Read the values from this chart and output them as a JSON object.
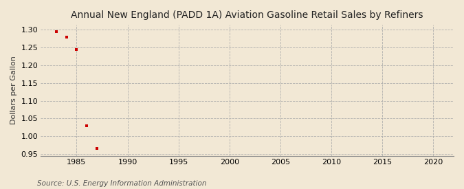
{
  "title": "Annual New England (PADD 1A) Aviation Gasoline Retail Sales by Refiners",
  "ylabel": "Dollars per Gallon",
  "source": "Source: U.S. Energy Information Administration",
  "x_data": [
    1983,
    1984,
    1985,
    1986,
    1987
  ],
  "y_data": [
    1.295,
    1.28,
    1.245,
    1.03,
    0.965
  ],
  "marker_color": "#cc0000",
  "marker_size": 3.5,
  "xlim": [
    1981.5,
    2022
  ],
  "ylim": [
    0.945,
    1.315
  ],
  "xticks": [
    1985,
    1990,
    1995,
    2000,
    2005,
    2010,
    2015,
    2020
  ],
  "yticks": [
    0.95,
    1.0,
    1.05,
    1.1,
    1.15,
    1.2,
    1.25,
    1.3
  ],
  "background_color": "#f2e8d5",
  "plot_bg_color": "#f2e8d5",
  "grid_color": "#aaaaaa",
  "title_fontsize": 10,
  "label_fontsize": 8,
  "tick_fontsize": 8,
  "source_fontsize": 7.5
}
